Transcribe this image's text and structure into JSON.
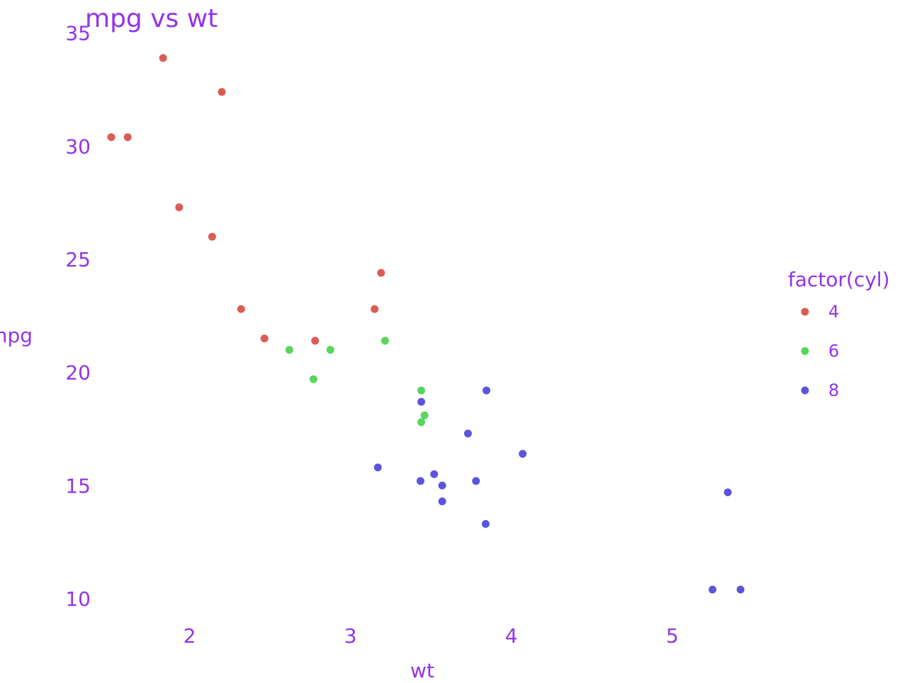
{
  "chart_data": {
    "type": "scatter",
    "title": "mpg vs wt",
    "xlabel": "wt",
    "ylabel": "mpg",
    "xlim": [
      1.35,
      5.6
    ],
    "ylim": [
      8.9,
      35.9
    ],
    "x_ticks": [
      2,
      3,
      4,
      5
    ],
    "y_ticks": [
      10,
      15,
      20,
      25,
      30,
      35
    ],
    "grid": false,
    "legend": {
      "title": "factor(cyl)",
      "placement": "right",
      "entries": [
        "4",
        "6",
        "8"
      ]
    },
    "series": [
      {
        "name": "4",
        "color": "#dc5c55",
        "points": [
          {
            "x": 2.32,
            "y": 22.8
          },
          {
            "x": 3.19,
            "y": 24.4
          },
          {
            "x": 3.15,
            "y": 22.8
          },
          {
            "x": 2.2,
            "y": 32.4
          },
          {
            "x": 1.615,
            "y": 30.4
          },
          {
            "x": 1.835,
            "y": 33.9
          },
          {
            "x": 2.465,
            "y": 21.5
          },
          {
            "x": 1.935,
            "y": 27.3
          },
          {
            "x": 2.14,
            "y": 26.0
          },
          {
            "x": 1.513,
            "y": 30.4
          },
          {
            "x": 2.78,
            "y": 21.4
          }
        ]
      },
      {
        "name": "6",
        "color": "#56d75c",
        "points": [
          {
            "x": 2.62,
            "y": 21.0
          },
          {
            "x": 2.875,
            "y": 21.0
          },
          {
            "x": 3.215,
            "y": 21.4
          },
          {
            "x": 3.46,
            "y": 18.1
          },
          {
            "x": 3.44,
            "y": 19.2
          },
          {
            "x": 3.44,
            "y": 17.8
          },
          {
            "x": 2.77,
            "y": 19.7
          }
        ]
      },
      {
        "name": "8",
        "color": "#5c55dc",
        "points": [
          {
            "x": 3.44,
            "y": 18.7
          },
          {
            "x": 3.57,
            "y": 14.3
          },
          {
            "x": 4.07,
            "y": 16.4
          },
          {
            "x": 3.73,
            "y": 17.3
          },
          {
            "x": 3.78,
            "y": 15.2
          },
          {
            "x": 5.25,
            "y": 10.4
          },
          {
            "x": 5.424,
            "y": 10.4
          },
          {
            "x": 5.345,
            "y": 14.7
          },
          {
            "x": 3.52,
            "y": 15.5
          },
          {
            "x": 3.435,
            "y": 15.2
          },
          {
            "x": 3.84,
            "y": 13.3
          },
          {
            "x": 3.845,
            "y": 19.2
          },
          {
            "x": 3.17,
            "y": 15.8
          },
          {
            "x": 3.57,
            "y": 15.0
          }
        ]
      }
    ],
    "colors": {
      "text": "#9333ea",
      "background": "#ffffff"
    }
  }
}
